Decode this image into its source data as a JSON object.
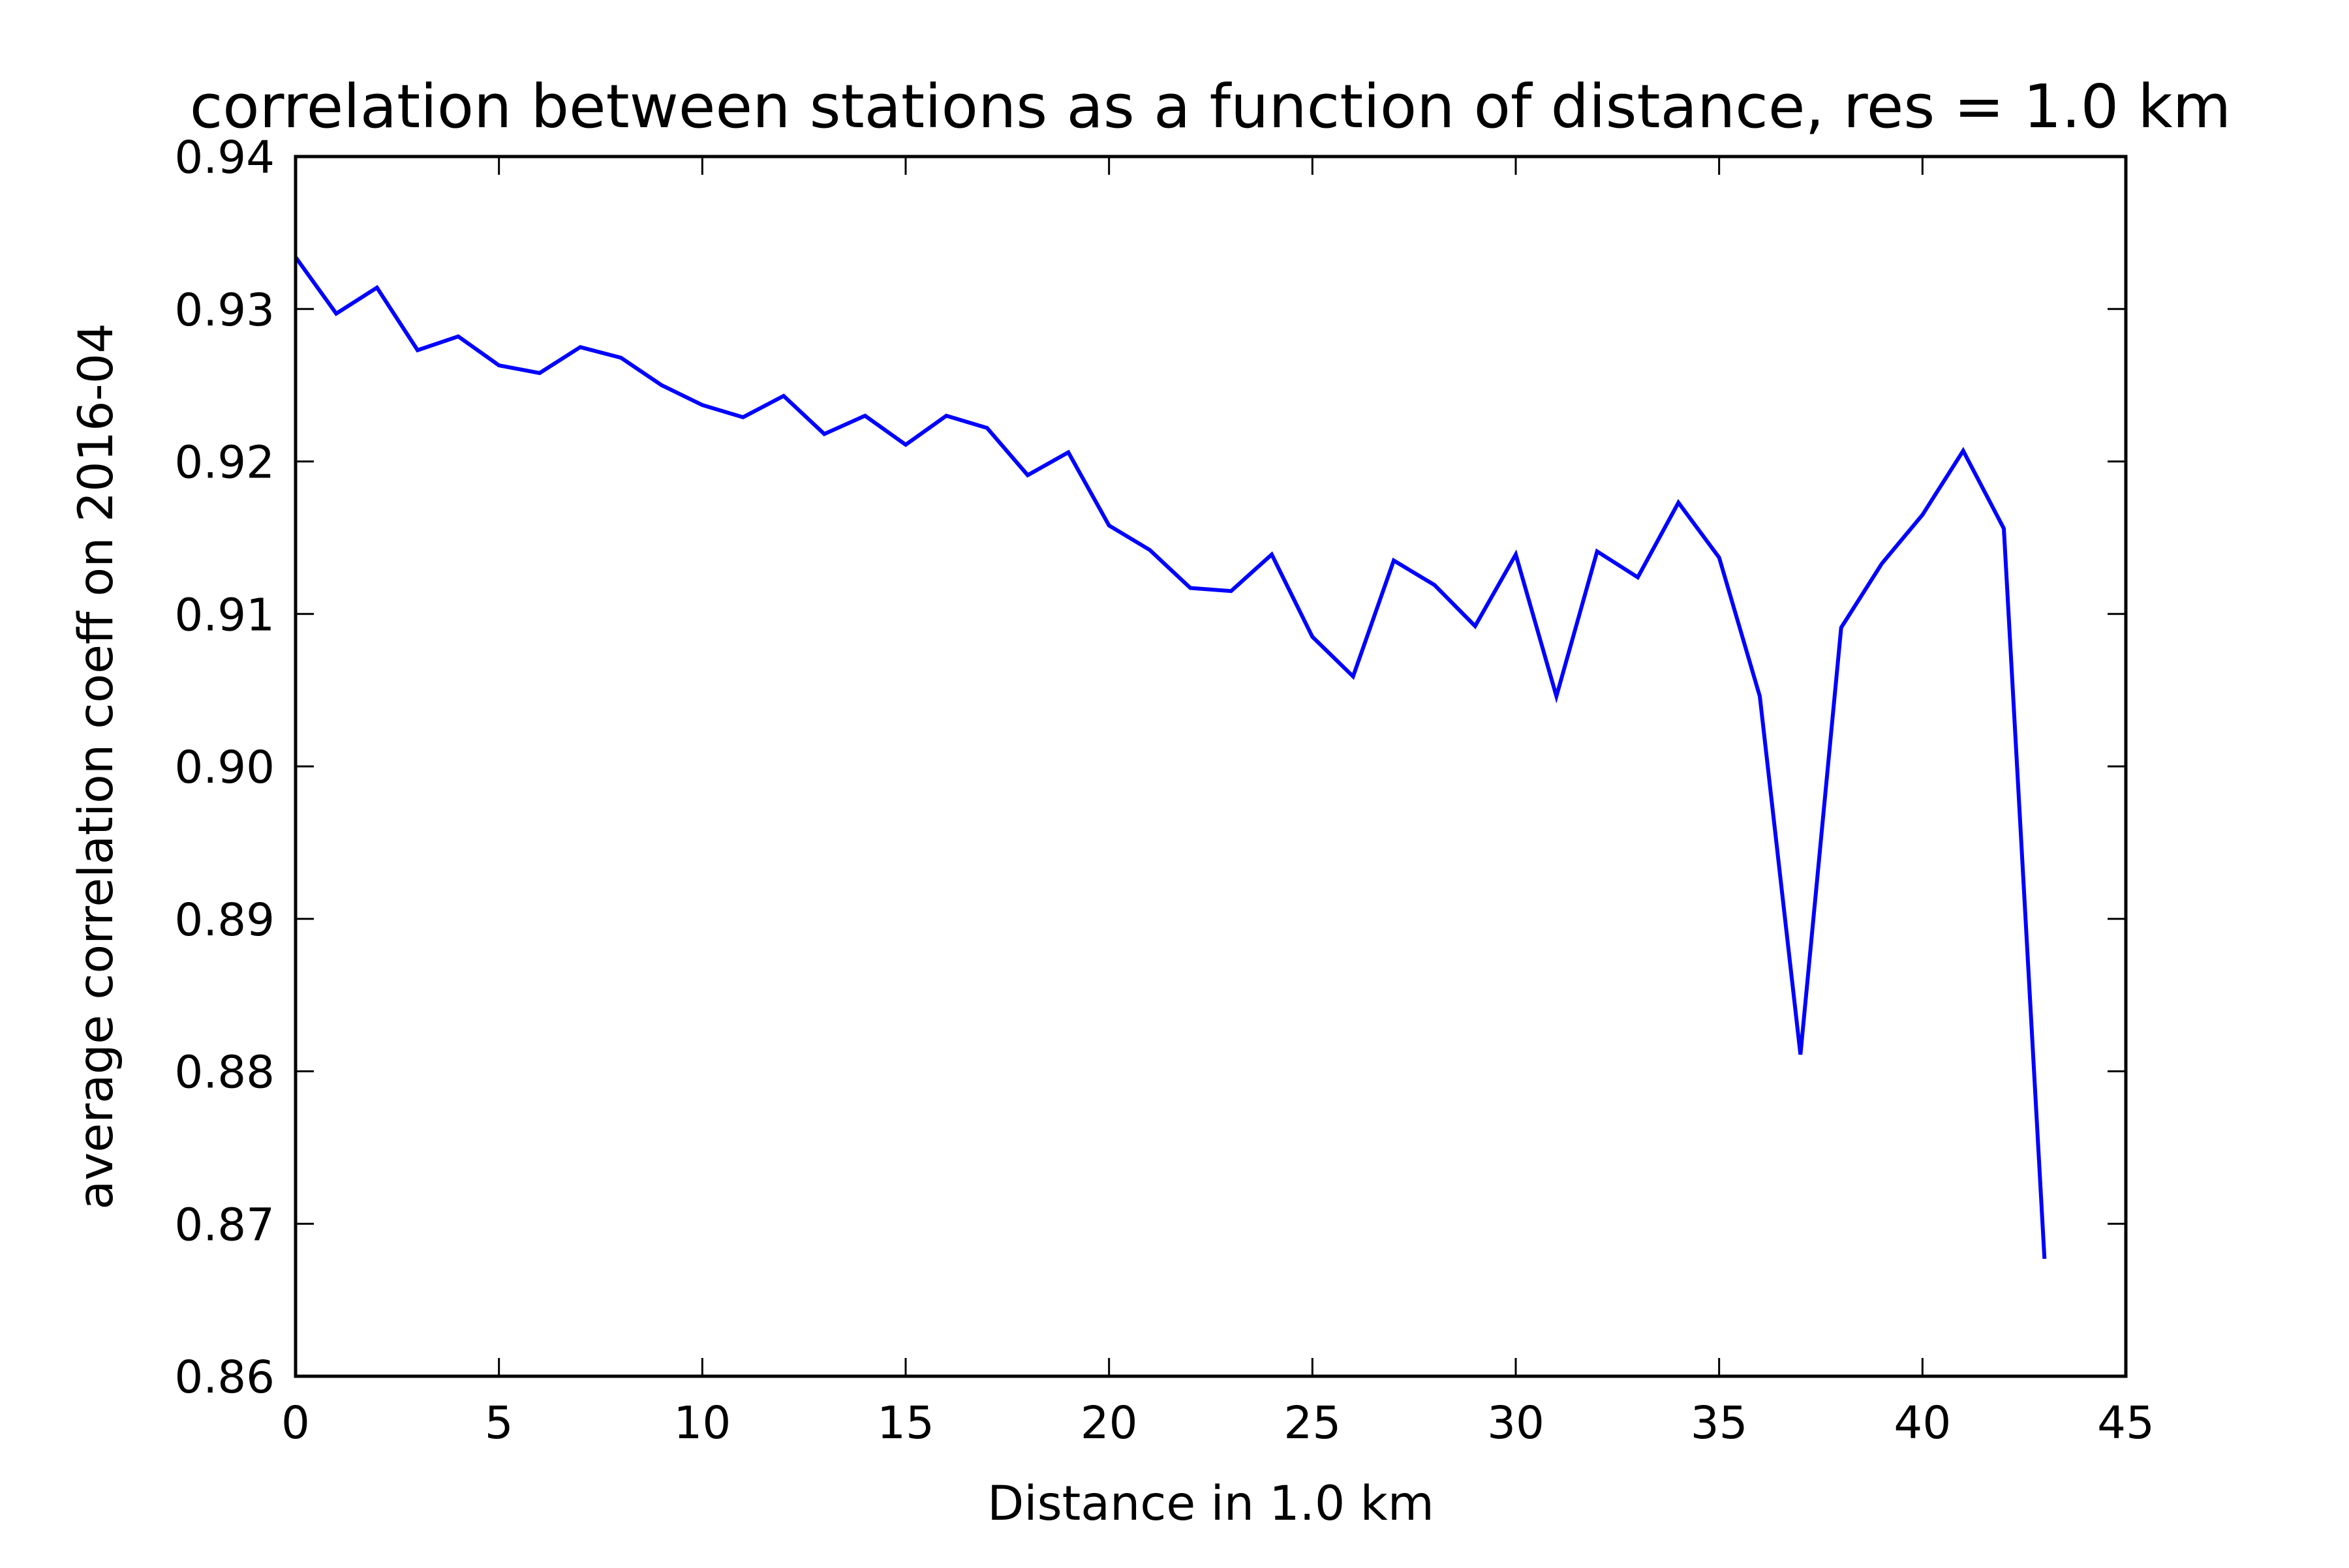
{
  "chart_data": {
    "type": "line",
    "title": "correlation between stations as a function of distance, res = 1.0 km",
    "xlabel": "Distance in 1.0 km",
    "ylabel": "average correlation coeff on 2016-04",
    "xlim": [
      0,
      45
    ],
    "ylim": [
      0.86,
      0.94
    ],
    "xticks": [
      0,
      5,
      10,
      15,
      20,
      25,
      30,
      35,
      40,
      45
    ],
    "xtick_labels": [
      "0",
      "5",
      "10",
      "15",
      "20",
      "25",
      "30",
      "35",
      "40",
      "45"
    ],
    "yticks": [
      0.86,
      0.87,
      0.88,
      0.89,
      0.9,
      0.91,
      0.92,
      0.93,
      0.94
    ],
    "ytick_labels": [
      "0.86",
      "0.87",
      "0.88",
      "0.89",
      "0.90",
      "0.91",
      "0.92",
      "0.93",
      "0.94"
    ],
    "grid": false,
    "series": [
      {
        "color": "#0000ff",
        "x": [
          0,
          1,
          2,
          3,
          4,
          5,
          6,
          7,
          8,
          9,
          10,
          11,
          12,
          13,
          14,
          15,
          16,
          17,
          18,
          19,
          20,
          21,
          22,
          23,
          24,
          25,
          26,
          27,
          28,
          29,
          30,
          31,
          32,
          33,
          34,
          35,
          36,
          37,
          38,
          39,
          40,
          41,
          42,
          43
        ],
        "y": [
          0.9334,
          0.9297,
          0.9314,
          0.9273,
          0.9282,
          0.9263,
          0.9258,
          0.9275,
          0.9268,
          0.925,
          0.9237,
          0.9229,
          0.9243,
          0.9218,
          0.923,
          0.9211,
          0.923,
          0.9222,
          0.9191,
          0.9206,
          0.9158,
          0.9142,
          0.9117,
          0.9115,
          0.9139,
          0.9085,
          0.9059,
          0.9135,
          0.9119,
          0.9092,
          0.9139,
          0.9046,
          0.9141,
          0.9124,
          0.9173,
          0.9137,
          0.9046,
          0.8811,
          0.9091,
          0.9133,
          0.9165,
          0.9207,
          0.9156,
          0.8677
        ]
      }
    ]
  }
}
